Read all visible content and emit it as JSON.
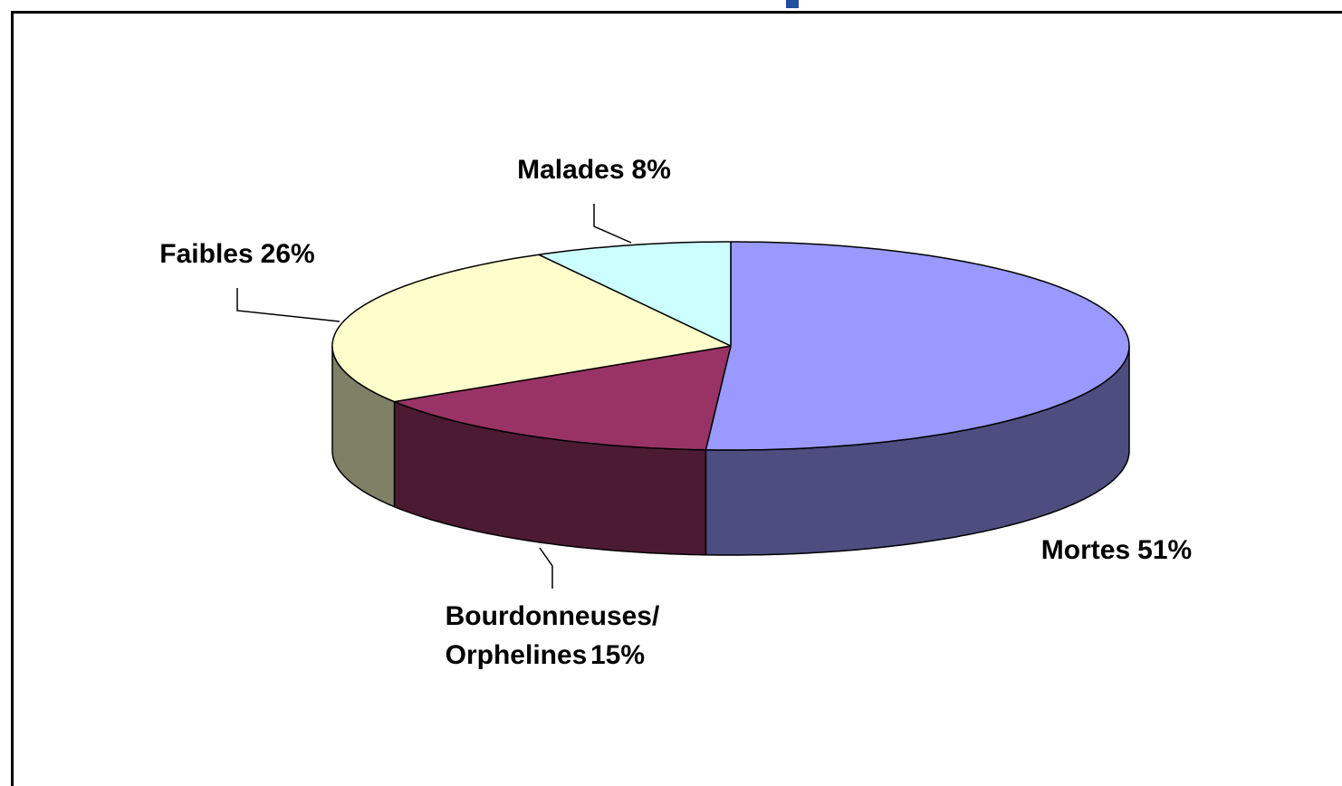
{
  "chart_data": {
    "type": "pie",
    "categories": [
      "Mortes",
      "Bourdonneuses/ Orphelines",
      "Faibles",
      "Malades"
    ],
    "values": [
      51,
      15,
      26,
      8
    ],
    "value_labels": [
      "51%",
      "15%",
      "26%",
      "8%"
    ],
    "colors": [
      "#9999ff",
      "#993366",
      "#ffffcc",
      "#ccffff"
    ]
  }
}
